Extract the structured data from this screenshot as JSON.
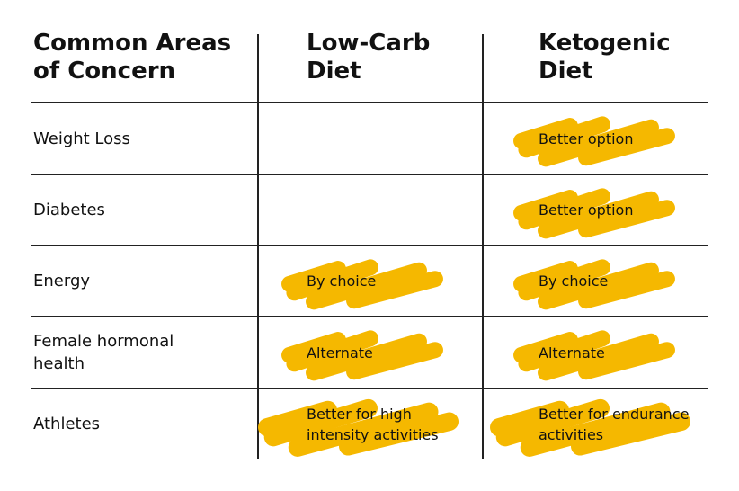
{
  "table": {
    "header": [
      "Common Areas of Concern",
      "Low-Carb Diet",
      "Ketogenic Diet"
    ],
    "rows": [
      [
        "Weight Loss",
        null,
        "Better option"
      ],
      [
        "Diabetes",
        null,
        "Better option"
      ],
      [
        "Energy",
        "By choice",
        "By choice"
      ],
      [
        "Female hormonal health",
        "Alternate",
        "Alternate"
      ],
      [
        "Athletes",
        "Better for high intensity activities",
        "Better for endurance activities"
      ]
    ]
  }
}
